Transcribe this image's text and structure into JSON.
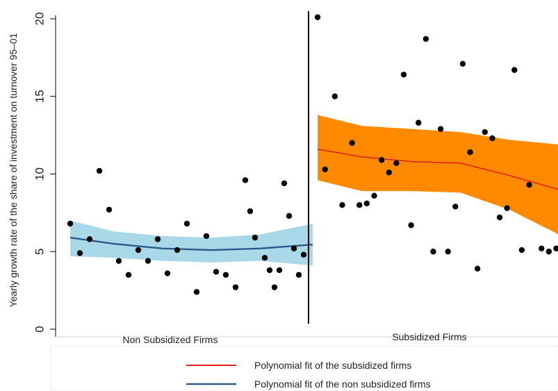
{
  "chart_data": {
    "type": "scatter",
    "title": "",
    "ylabel": "Yearly growth rate of the share of investment on turnover 95–01",
    "xlabel": "",
    "ylim": [
      0,
      20
    ],
    "yticks": [
      0,
      5,
      10,
      15,
      20
    ],
    "x_range": [
      -1,
      1
    ],
    "cutoff": 0,
    "grid": false,
    "group_labels": [
      "Non Subsidized Firms",
      "Subsidized Firms"
    ],
    "legend": {
      "placement": "bottom",
      "entries": [
        {
          "label": "Polynomial fit of the subsidized firms",
          "color": "#e3211c"
        },
        {
          "label": "Polynomial fit of the non subsidized firms",
          "color": "#2a5a8a"
        }
      ]
    },
    "colors": {
      "points": "#000000",
      "non_subsidized_band": "#a9d9e8",
      "non_subsidized_line": "#2a5a8a",
      "subsidized_band": "#ff8a00",
      "subsidized_line": "#e3211c",
      "cutoff_line": "#000000"
    },
    "series": [
      {
        "group": "non_subsidized",
        "x": [
          -0.98,
          -0.94,
          -0.9,
          -0.86,
          -0.82,
          -0.78,
          -0.74,
          -0.7,
          -0.66,
          -0.62,
          -0.58,
          -0.54,
          -0.5,
          -0.46,
          -0.42,
          -0.38,
          -0.34,
          -0.3,
          -0.26,
          -0.22,
          -0.18,
          -0.14,
          -0.1,
          -0.06,
          -0.02,
          -0.16,
          -0.12,
          -0.24,
          -0.08,
          -0.04
        ],
        "y": [
          6.8,
          4.9,
          5.8,
          10.2,
          7.7,
          4.4,
          3.5,
          5.1,
          4.4,
          5.8,
          3.6,
          5.1,
          6.8,
          2.4,
          6.0,
          3.7,
          3.5,
          2.7,
          9.6,
          5.9,
          4.6,
          2.7,
          9.4,
          5.2,
          4.8,
          3.8,
          3.8,
          7.6,
          7.3,
          3.5
        ]
      },
      {
        "group": "subsidized",
        "x": [
          0.02,
          0.05,
          0.09,
          0.12,
          0.16,
          0.19,
          0.22,
          0.25,
          0.28,
          0.31,
          0.34,
          0.37,
          0.4,
          0.43,
          0.46,
          0.49,
          0.52,
          0.55,
          0.58,
          0.61,
          0.64,
          0.67,
          0.7,
          0.73,
          0.76,
          0.79,
          0.82,
          0.85,
          0.88,
          0.93,
          0.96,
          0.99
        ],
        "y": [
          20.1,
          10.3,
          15.0,
          8.0,
          12.0,
          8.0,
          8.1,
          8.6,
          10.9,
          10.1,
          10.7,
          16.4,
          6.7,
          13.3,
          18.7,
          5.0,
          12.9,
          5.0,
          7.9,
          17.1,
          11.4,
          3.9,
          12.7,
          12.3,
          7.2,
          7.8,
          16.7,
          5.1,
          9.3,
          5.2,
          5.0,
          5.2
        ]
      }
    ],
    "fits": [
      {
        "group": "non_subsidized",
        "x": [
          -0.98,
          -0.8,
          -0.6,
          -0.4,
          -0.2,
          0.0
        ],
        "fit": [
          5.9,
          5.5,
          5.2,
          5.1,
          5.2,
          5.45
        ],
        "lower": [
          4.7,
          4.6,
          4.4,
          4.3,
          4.4,
          4.1
        ],
        "upper": [
          7.0,
          6.3,
          6.0,
          5.9,
          6.1,
          6.8
        ]
      },
      {
        "group": "subsidized",
        "x": [
          0.02,
          0.2,
          0.4,
          0.6,
          0.8,
          1.0
        ],
        "fit": [
          11.6,
          11.1,
          10.8,
          10.7,
          9.9,
          9.0
        ],
        "lower": [
          9.6,
          8.9,
          8.9,
          8.8,
          7.7,
          6.1
        ],
        "upper": [
          13.8,
          13.1,
          12.9,
          12.7,
          12.2,
          11.9
        ]
      }
    ]
  }
}
